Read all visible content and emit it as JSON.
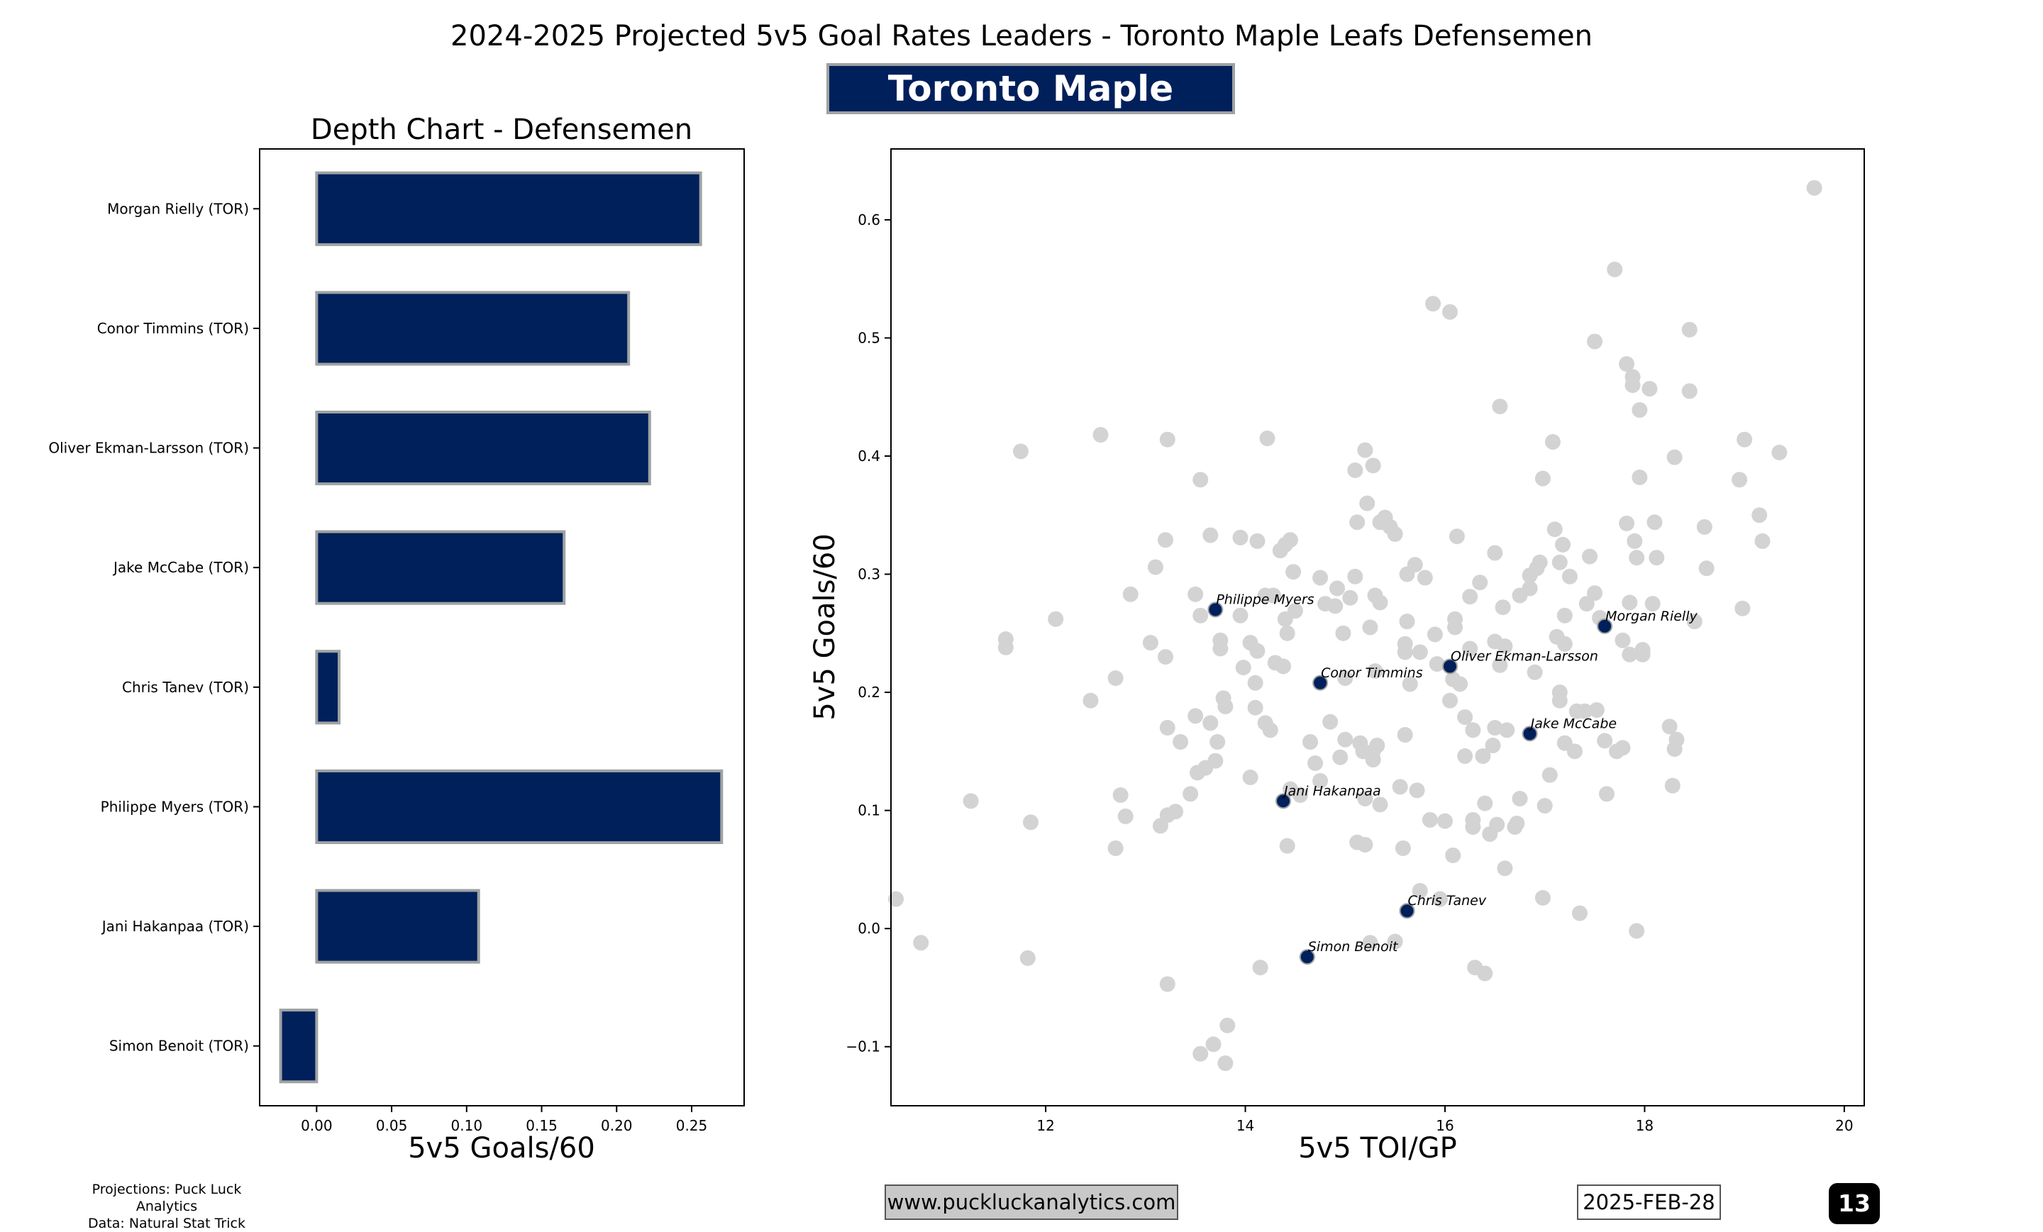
{
  "page": {
    "title": "2024-2025 Projected 5v5 Goal Rates Leaders - Toronto Maple Leafs Defensemen",
    "team_banner": "Toronto Maple Leafs",
    "source_line1": "Projections: Puck Luck Analytics",
    "source_line2": "Data: Natural Stat Trick",
    "website": "www.puckluckanalytics.com",
    "date": "2025-FEB-28",
    "rank": "13"
  },
  "colors": {
    "team_primary": "#00205b",
    "team_border": "#9ea2a2",
    "league_points": "#d3d3d3"
  },
  "chart_data": [
    {
      "type": "bar",
      "orientation": "horizontal",
      "title": "Depth Chart - Defensemen",
      "xlabel": "5v5 Goals/60",
      "xlim": [
        -0.038,
        0.285
      ],
      "xticks": [
        "0.00",
        "0.05",
        "0.10",
        "0.15",
        "0.20",
        "0.25"
      ],
      "categories": [
        "Morgan Rielly (TOR)",
        "Conor Timmins (TOR)",
        "Oliver Ekman-Larsson (TOR)",
        "Jake McCabe (TOR)",
        "Chris Tanev (TOR)",
        "Philippe Myers (TOR)",
        "Jani Hakanpaa (TOR)",
        "Simon Benoit (TOR)"
      ],
      "values": [
        0.256,
        0.208,
        0.222,
        0.165,
        0.015,
        0.27,
        0.108,
        -0.024
      ]
    },
    {
      "type": "scatter",
      "xlabel": "5v5 TOI/GP",
      "ylabel": "5v5 Goals/60",
      "xlim": [
        10.45,
        20.2
      ],
      "ylim": [
        -0.15,
        0.66
      ],
      "xticks": [
        "12",
        "14",
        "16",
        "18",
        "20"
      ],
      "yticks": [
        "−0.1",
        "0.0",
        "0.1",
        "0.2",
        "0.3",
        "0.4",
        "0.5",
        "0.6"
      ],
      "highlight": [
        {
          "name": "Morgan Rielly",
          "x": 17.6,
          "y": 0.256
        },
        {
          "name": "Conor Timmins",
          "x": 14.75,
          "y": 0.208
        },
        {
          "name": "Oliver Ekman-Larsson",
          "x": 16.05,
          "y": 0.222
        },
        {
          "name": "Jake McCabe",
          "x": 16.85,
          "y": 0.165
        },
        {
          "name": "Chris Tanev",
          "x": 15.62,
          "y": 0.015
        },
        {
          "name": "Philippe Myers",
          "x": 13.7,
          "y": 0.27
        },
        {
          "name": "Jani Hakanpaa",
          "x": 14.38,
          "y": 0.108
        },
        {
          "name": "Simon Benoit",
          "x": 14.62,
          "y": -0.024
        }
      ],
      "league": [
        [
          10.5,
          0.025
        ],
        [
          10.75,
          -0.012
        ],
        [
          11.25,
          0.108
        ],
        [
          11.6,
          0.245
        ],
        [
          11.6,
          0.238
        ],
        [
          11.75,
          0.404
        ],
        [
          11.82,
          -0.025
        ],
        [
          11.85,
          0.09
        ],
        [
          12.1,
          0.262
        ],
        [
          12.45,
          0.193
        ],
        [
          12.55,
          0.418
        ],
        [
          12.7,
          0.212
        ],
        [
          12.7,
          0.068
        ],
        [
          12.75,
          0.113
        ],
        [
          12.8,
          0.095
        ],
        [
          12.85,
          0.283
        ],
        [
          13.05,
          0.242
        ],
        [
          13.1,
          0.306
        ],
        [
          13.15,
          0.087
        ],
        [
          13.2,
          0.23
        ],
        [
          13.2,
          0.329
        ],
        [
          13.22,
          0.414
        ],
        [
          13.22,
          0.17
        ],
        [
          13.22,
          -0.047
        ],
        [
          13.22,
          0.096
        ],
        [
          13.3,
          0.099
        ],
        [
          13.35,
          0.158
        ],
        [
          13.45,
          0.114
        ],
        [
          13.5,
          0.18
        ],
        [
          13.5,
          0.283
        ],
        [
          13.52,
          0.132
        ],
        [
          13.55,
          0.265
        ],
        [
          13.55,
          0.38
        ],
        [
          13.55,
          -0.106
        ],
        [
          13.6,
          0.136
        ],
        [
          13.65,
          0.174
        ],
        [
          13.65,
          0.333
        ],
        [
          13.68,
          -0.098
        ],
        [
          13.7,
          0.142
        ],
        [
          13.72,
          0.158
        ],
        [
          13.75,
          0.244
        ],
        [
          13.75,
          0.237
        ],
        [
          13.78,
          0.195
        ],
        [
          13.8,
          0.188
        ],
        [
          13.8,
          -0.114
        ],
        [
          13.82,
          -0.082
        ],
        [
          13.95,
          0.265
        ],
        [
          13.95,
          0.331
        ],
        [
          13.98,
          0.221
        ],
        [
          14.05,
          0.242
        ],
        [
          14.05,
          0.128
        ],
        [
          14.1,
          0.187
        ],
        [
          14.1,
          0.208
        ],
        [
          14.12,
          0.328
        ],
        [
          14.12,
          0.235
        ],
        [
          14.15,
          -0.033
        ],
        [
          14.2,
          0.282
        ],
        [
          14.2,
          0.174
        ],
        [
          14.22,
          0.415
        ],
        [
          14.25,
          0.168
        ],
        [
          14.28,
          0.282
        ],
        [
          14.3,
          0.225
        ],
        [
          14.35,
          0.32
        ],
        [
          14.38,
          0.222
        ],
        [
          14.4,
          0.325
        ],
        [
          14.4,
          0.262
        ],
        [
          14.42,
          0.25
        ],
        [
          14.42,
          0.07
        ],
        [
          14.45,
          0.118
        ],
        [
          14.45,
          0.329
        ],
        [
          14.48,
          0.302
        ],
        [
          14.5,
          0.269
        ],
        [
          14.55,
          0.113
        ],
        [
          14.65,
          0.158
        ],
        [
          14.7,
          0.14
        ],
        [
          14.75,
          0.297
        ],
        [
          14.75,
          0.125
        ],
        [
          14.8,
          0.275
        ],
        [
          14.85,
          0.175
        ],
        [
          14.9,
          0.273
        ],
        [
          14.92,
          0.288
        ],
        [
          14.95,
          0.145
        ],
        [
          14.98,
          0.25
        ],
        [
          15.0,
          0.212
        ],
        [
          15.0,
          0.16
        ],
        [
          15.05,
          0.28
        ],
        [
          15.1,
          0.298
        ],
        [
          15.1,
          0.388
        ],
        [
          15.12,
          0.073
        ],
        [
          15.12,
          0.344
        ],
        [
          15.15,
          0.157
        ],
        [
          15.18,
          0.15
        ],
        [
          15.2,
          0.405
        ],
        [
          15.2,
          0.11
        ],
        [
          15.2,
          0.071
        ],
        [
          15.22,
          0.36
        ],
        [
          15.25,
          0.255
        ],
        [
          15.25,
          -0.012
        ],
        [
          15.28,
          0.15
        ],
        [
          15.28,
          0.143
        ],
        [
          15.28,
          0.392
        ],
        [
          15.3,
          0.282
        ],
        [
          15.3,
          0.218
        ],
        [
          15.32,
          0.155
        ],
        [
          15.35,
          0.344
        ],
        [
          15.35,
          0.276
        ],
        [
          15.35,
          0.105
        ],
        [
          15.4,
          0.348
        ],
        [
          15.45,
          0.34
        ],
        [
          15.5,
          0.334
        ],
        [
          15.5,
          -0.011
        ],
        [
          15.55,
          0.12
        ],
        [
          15.58,
          0.068
        ],
        [
          15.6,
          0.234
        ],
        [
          15.6,
          0.164
        ],
        [
          15.6,
          0.241
        ],
        [
          15.62,
          0.3
        ],
        [
          15.62,
          0.26
        ],
        [
          15.65,
          0.207
        ],
        [
          15.7,
          0.308
        ],
        [
          15.72,
          0.117
        ],
        [
          15.75,
          0.234
        ],
        [
          15.75,
          0.032
        ],
        [
          15.8,
          0.297
        ],
        [
          15.85,
          0.092
        ],
        [
          15.88,
          0.529
        ],
        [
          15.9,
          0.249
        ],
        [
          15.92,
          0.224
        ],
        [
          15.95,
          0.025
        ],
        [
          16.0,
          0.091
        ],
        [
          16.05,
          0.522
        ],
        [
          16.05,
          0.193
        ],
        [
          16.08,
          0.211
        ],
        [
          16.08,
          0.062
        ],
        [
          16.1,
          0.255
        ],
        [
          16.1,
          0.262
        ],
        [
          16.12,
          0.332
        ],
        [
          16.15,
          0.207
        ],
        [
          16.2,
          0.146
        ],
        [
          16.2,
          0.179
        ],
        [
          16.25,
          0.281
        ],
        [
          16.25,
          0.237
        ],
        [
          16.28,
          0.168
        ],
        [
          16.28,
          0.086
        ],
        [
          16.28,
          0.092
        ],
        [
          16.3,
          -0.033
        ],
        [
          16.35,
          0.293
        ],
        [
          16.38,
          0.146
        ],
        [
          16.4,
          0.106
        ],
        [
          16.4,
          -0.038
        ],
        [
          16.45,
          0.08
        ],
        [
          16.48,
          0.155
        ],
        [
          16.5,
          0.243
        ],
        [
          16.5,
          0.318
        ],
        [
          16.5,
          0.17
        ],
        [
          16.52,
          0.088
        ],
        [
          16.55,
          0.223
        ],
        [
          16.55,
          0.442
        ],
        [
          16.58,
          0.272
        ],
        [
          16.6,
          0.239
        ],
        [
          16.6,
          0.051
        ],
        [
          16.62,
          0.168
        ],
        [
          16.7,
          0.086
        ],
        [
          16.72,
          0.089
        ],
        [
          16.75,
          0.11
        ],
        [
          16.75,
          0.282
        ],
        [
          16.85,
          0.299
        ],
        [
          16.85,
          0.288
        ],
        [
          16.9,
          0.217
        ],
        [
          16.92,
          0.305
        ],
        [
          16.95,
          0.31
        ],
        [
          16.98,
          0.381
        ],
        [
          16.98,
          0.026
        ],
        [
          17.0,
          0.104
        ],
        [
          17.05,
          0.13
        ],
        [
          17.08,
          0.412
        ],
        [
          17.1,
          0.338
        ],
        [
          17.12,
          0.247
        ],
        [
          17.15,
          0.31
        ],
        [
          17.15,
          0.193
        ],
        [
          17.15,
          0.2
        ],
        [
          17.18,
          0.325
        ],
        [
          17.2,
          0.265
        ],
        [
          17.2,
          0.241
        ],
        [
          17.2,
          0.157
        ],
        [
          17.25,
          0.298
        ],
        [
          17.3,
          0.15
        ],
        [
          17.32,
          0.184
        ],
        [
          17.35,
          0.013
        ],
        [
          17.4,
          0.184
        ],
        [
          17.42,
          0.275
        ],
        [
          17.45,
          0.315
        ],
        [
          17.5,
          0.497
        ],
        [
          17.5,
          0.284
        ],
        [
          17.52,
          0.185
        ],
        [
          17.55,
          0.263
        ],
        [
          17.6,
          0.159
        ],
        [
          17.62,
          0.114
        ],
        [
          17.7,
          0.558
        ],
        [
          17.72,
          0.15
        ],
        [
          17.78,
          0.153
        ],
        [
          17.78,
          0.244
        ],
        [
          17.82,
          0.478
        ],
        [
          17.82,
          0.343
        ],
        [
          17.85,
          0.276
        ],
        [
          17.85,
          0.232
        ],
        [
          17.88,
          0.46
        ],
        [
          17.88,
          0.467
        ],
        [
          17.9,
          0.328
        ],
        [
          17.92,
          0.314
        ],
        [
          17.92,
          -0.002
        ],
        [
          17.95,
          0.439
        ],
        [
          17.95,
          0.382
        ],
        [
          17.98,
          0.232
        ],
        [
          17.98,
          0.236
        ],
        [
          18.05,
          0.457
        ],
        [
          18.08,
          0.275
        ],
        [
          18.1,
          0.344
        ],
        [
          18.12,
          0.314
        ],
        [
          18.25,
          0.171
        ],
        [
          18.28,
          0.121
        ],
        [
          18.3,
          0.399
        ],
        [
          18.3,
          0.152
        ],
        [
          18.32,
          0.16
        ],
        [
          18.45,
          0.455
        ],
        [
          18.45,
          0.507
        ],
        [
          18.5,
          0.26
        ],
        [
          18.6,
          0.34
        ],
        [
          18.62,
          0.305
        ],
        [
          18.95,
          0.38
        ],
        [
          18.98,
          0.271
        ],
        [
          19.0,
          0.414
        ],
        [
          19.15,
          0.35
        ],
        [
          19.18,
          0.328
        ],
        [
          19.35,
          0.403
        ],
        [
          19.7,
          0.627
        ]
      ]
    }
  ]
}
